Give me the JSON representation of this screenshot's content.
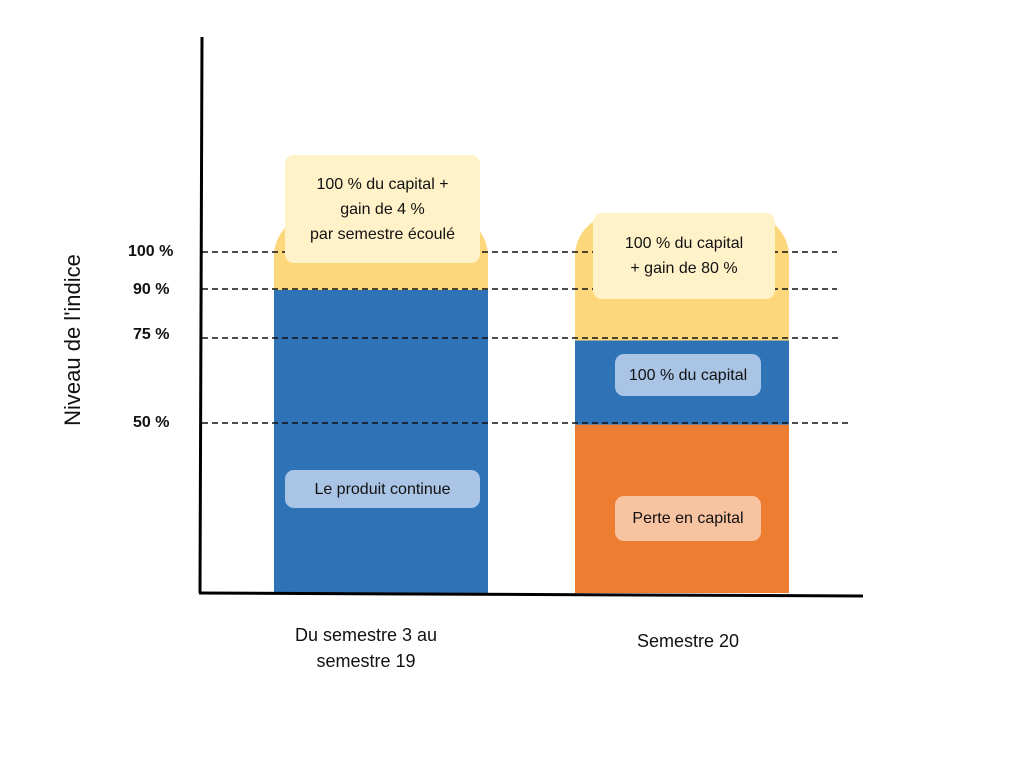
{
  "chart_data": {
    "type": "bar",
    "stacked": true,
    "ylabel": "Niveau de l'indice",
    "xlabel": "",
    "title": "",
    "categories": [
      "Du semestre 3 au semestre 19",
      "Semestre 20"
    ],
    "threshold_lines": [
      {
        "value": 100,
        "label": "100 %"
      },
      {
        "value": 90,
        "label": "90 %"
      },
      {
        "value": 75,
        "label": "75 %"
      },
      {
        "value": 50,
        "label": "50 %"
      }
    ],
    "bars": [
      {
        "category": "Du semestre 3 au semestre 19",
        "segments": [
          {
            "from": 0,
            "to": 90,
            "color": "#2e73b5",
            "label": "Le produit continue"
          },
          {
            "from": 90,
            "to": 112.5,
            "color": "#fdd77c",
            "label": "100 % du capital + gain de 4 % par semestre écoulé"
          }
        ]
      },
      {
        "category": "Semestre 20",
        "segments": [
          {
            "from": 0,
            "to": 50,
            "color": "#ed7d31",
            "label": "Perte en capital"
          },
          {
            "from": 50,
            "to": 75,
            "color": "#2e73b5",
            "label": "100 % du capital"
          },
          {
            "from": 75,
            "to": 112.5,
            "color": "#fdd77c",
            "label": "100 % du capital + gain de 80 %"
          }
        ]
      }
    ]
  },
  "labels": {
    "tick_100": "100 %",
    "tick_90": "90 %",
    "tick_75": "75 %",
    "tick_50": "50 %",
    "cat1_line1": "Du semestre 3 au",
    "cat1_line2": "semestre 19",
    "cat2": "Semestre 20",
    "bar1_top_l1": "100 % du capital +",
    "bar1_top_l2": "gain de 4 %",
    "bar1_top_l3": "par semestre écoulé",
    "bar1_bottom": "Le produit continue",
    "bar2_top_l1": "100 % du capital",
    "bar2_top_l2": "+ gain de 80 %",
    "bar2_mid": "100 % du capital",
    "bar2_bottom": "Perte en capital"
  }
}
